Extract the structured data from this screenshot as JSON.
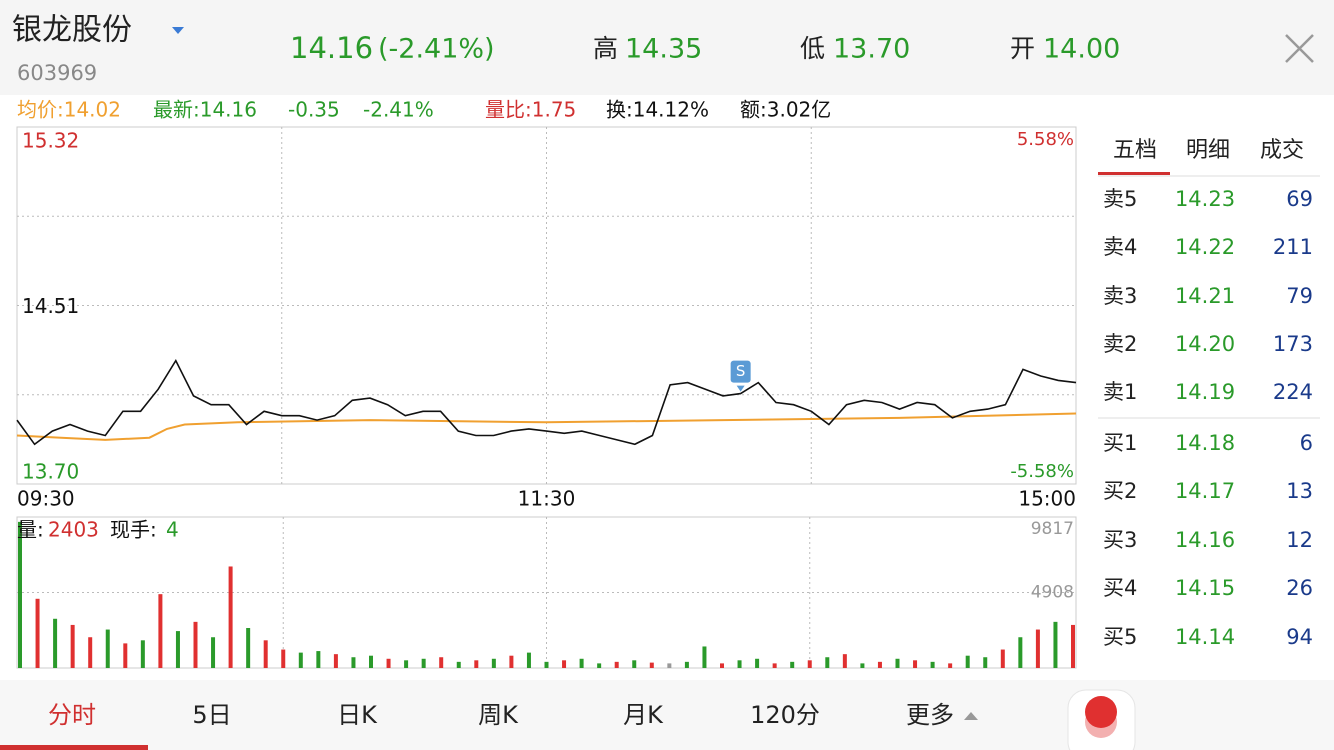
{
  "header": {
    "name": "银龙股份",
    "code": "603969",
    "price": "14.16",
    "change": "(-2.41%)",
    "high_label": "高",
    "high": "14.35",
    "low_label": "低",
    "low": "13.70",
    "open_label": "开",
    "open": "14.00"
  },
  "info_bar": {
    "avg": "均价:14.02",
    "latest": "最新:14.16",
    "change": "-0.35",
    "pct": "-2.41%",
    "vol_ratio": "量比:1.75",
    "turnover": "换:14.12%",
    "amount": "额:3.02亿"
  },
  "volume_bar": {
    "vol_label": "量:",
    "vol": "2403",
    "hand_label": "现手:",
    "hand": "4"
  },
  "chart_data": [
    {
      "type": "line",
      "xlim": [
        0,
        240
      ],
      "xticks": [
        {
          "value": 0,
          "label": "09:30"
        },
        {
          "value": 120,
          "label": "11:30"
        },
        {
          "value": 240,
          "label": "15:00"
        }
      ],
      "xgrid": [
        60,
        120,
        180
      ],
      "ylim": [
        13.7,
        15.32
      ],
      "yticks": [
        {
          "value": 13.7,
          "label": "13.70"
        },
        14.51,
        15.32
      ],
      "ytick_colors": [
        "#2a9a2a",
        "#111111",
        "#d03030"
      ],
      "ygrid": [
        14.105,
        14.51,
        14.915
      ],
      "y2lim": [
        -5.58,
        5.58
      ],
      "y2ticks": [
        {
          "value": -5.58,
          "label": "-5.58%"
        },
        {
          "value": 5.58,
          "label": "5.58%"
        }
      ],
      "y2tick_colors": [
        "#2a9a2a",
        "#d03030"
      ],
      "series": [
        {
          "color": "#111111",
          "x": [
            0,
            4,
            8,
            12,
            16,
            20,
            24,
            28,
            32,
            36,
            40,
            44,
            48,
            52,
            56,
            60,
            64,
            68,
            72,
            76,
            80,
            84,
            88,
            92,
            96,
            100,
            104,
            108,
            112,
            116,
            120,
            124,
            128,
            132,
            136,
            140,
            144,
            148,
            152,
            156,
            160,
            164,
            168,
            172,
            176,
            180,
            184,
            188,
            192,
            196,
            200,
            204,
            208,
            212,
            216,
            220,
            224,
            228,
            232,
            236,
            240
          ],
          "values": [
            13.99,
            13.88,
            13.94,
            13.97,
            13.94,
            13.92,
            14.03,
            14.03,
            14.13,
            14.26,
            14.1,
            14.06,
            14.06,
            13.97,
            14.03,
            14.01,
            14.01,
            13.99,
            14.01,
            14.08,
            14.09,
            14.06,
            14.01,
            14.03,
            14.03,
            13.94,
            13.92,
            13.92,
            13.94,
            13.95,
            13.94,
            13.93,
            13.94,
            13.92,
            13.9,
            13.88,
            13.92,
            14.15,
            14.16,
            14.13,
            14.1,
            14.11,
            14.16,
            14.07,
            14.06,
            14.03,
            13.97,
            14.06,
            14.08,
            14.07,
            14.04,
            14.07,
            14.06,
            14.0,
            14.03,
            14.04,
            14.06,
            14.22,
            14.19,
            14.17,
            14.16
          ]
        },
        {
          "color": "#f0a030",
          "x": [
            0,
            10,
            20,
            30,
            34,
            38,
            50,
            80,
            120,
            160,
            200,
            240
          ],
          "values": [
            13.92,
            13.91,
            13.9,
            13.91,
            13.95,
            13.97,
            13.98,
            13.99,
            13.98,
            13.99,
            14.0,
            14.02
          ]
        }
      ],
      "annotations": [
        {
          "text": "S",
          "x": 164,
          "y": 14.11
        }
      ]
    },
    {
      "type": "bar",
      "xlim": [
        0,
        240
      ],
      "xgrid": [
        60,
        120,
        180
      ],
      "ylim": [
        0,
        9817
      ],
      "yticks": [
        4908,
        9817
      ],
      "ygrid": [
        4908
      ],
      "x": [
        0,
        4,
        8,
        12,
        16,
        20,
        24,
        28,
        32,
        36,
        40,
        44,
        48,
        52,
        56,
        60,
        64,
        68,
        72,
        76,
        80,
        84,
        88,
        92,
        96,
        100,
        104,
        108,
        112,
        116,
        120,
        124,
        128,
        132,
        136,
        140,
        144,
        148,
        152,
        156,
        160,
        164,
        168,
        172,
        176,
        180,
        184,
        188,
        192,
        196,
        200,
        204,
        208,
        212,
        216,
        220,
        224,
        228,
        232,
        236,
        240
      ],
      "values": [
        9500,
        4500,
        3200,
        2800,
        2000,
        2500,
        1600,
        1800,
        4800,
        2400,
        3000,
        2000,
        6600,
        2600,
        1800,
        1200,
        1000,
        1100,
        900,
        700,
        800,
        600,
        500,
        600,
        700,
        400,
        500,
        600,
        800,
        1000,
        400,
        500,
        600,
        300,
        400,
        500,
        350,
        300,
        400,
        1400,
        300,
        500,
        600,
        300,
        400,
        500,
        700,
        900,
        300,
        400,
        600,
        500,
        400,
        300,
        800,
        700,
        1200,
        2000,
        2500,
        3000,
        2800
      ],
      "colors": [
        "#2a9a2a",
        "#e03030",
        "#2a9a2a",
        "#e03030",
        "#e03030",
        "#2a9a2a",
        "#e03030",
        "#2a9a2a",
        "#e03030",
        "#2a9a2a",
        "#e03030",
        "#2a9a2a",
        "#e03030",
        "#2a9a2a",
        "#e03030",
        "#e03030",
        "#2a9a2a",
        "#2a9a2a",
        "#e03030",
        "#2a9a2a",
        "#2a9a2a",
        "#e03030",
        "#2a9a2a",
        "#2a9a2a",
        "#e03030",
        "#2a9a2a",
        "#e03030",
        "#2a9a2a",
        "#e03030",
        "#2a9a2a",
        "#2a9a2a",
        "#e03030",
        "#2a9a2a",
        "#2a9a2a",
        "#e03030",
        "#2a9a2a",
        "#e03030",
        "#999999",
        "#2a9a2a",
        "#2a9a2a",
        "#e03030",
        "#2a9a2a",
        "#2a9a2a",
        "#e03030",
        "#2a9a2a",
        "#e03030",
        "#2a9a2a",
        "#e03030",
        "#2a9a2a",
        "#e03030",
        "#2a9a2a",
        "#e03030",
        "#2a9a2a",
        "#e03030",
        "#2a9a2a",
        "#2a9a2a",
        "#e03030",
        "#2a9a2a",
        "#e03030",
        "#2a9a2a",
        "#e03030"
      ]
    }
  ],
  "order_book": {
    "tabs": [
      "五档",
      "明细",
      "成交"
    ],
    "asks": [
      {
        "label": "卖5",
        "price": "14.23",
        "volume": "69"
      },
      {
        "label": "卖4",
        "price": "14.22",
        "volume": "211"
      },
      {
        "label": "卖3",
        "price": "14.21",
        "volume": "79"
      },
      {
        "label": "卖2",
        "price": "14.20",
        "volume": "173"
      },
      {
        "label": "卖1",
        "price": "14.19",
        "volume": "224"
      }
    ],
    "bids": [
      {
        "label": "买1",
        "price": "14.18",
        "volume": "6"
      },
      {
        "label": "买2",
        "price": "14.17",
        "volume": "13"
      },
      {
        "label": "买3",
        "price": "14.16",
        "volume": "12"
      },
      {
        "label": "买4",
        "price": "14.15",
        "volume": "26"
      },
      {
        "label": "买5",
        "price": "14.14",
        "volume": "94"
      }
    ]
  },
  "tabs": [
    "分时",
    "5日",
    "日K",
    "周K",
    "月K",
    "120分",
    "更多"
  ]
}
